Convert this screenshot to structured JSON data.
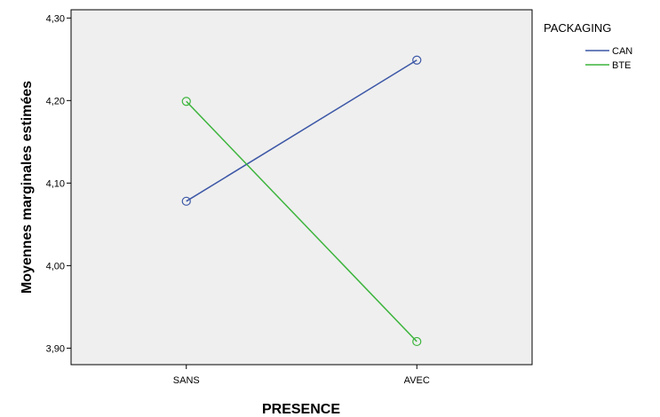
{
  "chart_data": {
    "type": "line",
    "categories": [
      "SANS",
      "AVEC"
    ],
    "series": [
      {
        "name": "CAN",
        "values": [
          4.078,
          4.249
        ],
        "color": "#3c57a6"
      },
      {
        "name": "BTE",
        "values": [
          4.199,
          3.908
        ],
        "color": "#3cb43c"
      }
    ],
    "xlabel": "PRESENCE",
    "ylabel": "Moyennes marginales estimées",
    "ylim": [
      3.88,
      4.31
    ],
    "yticks": [
      3.9,
      4.0,
      4.1,
      4.2,
      4.3
    ],
    "ytick_labels": [
      "3,90",
      "4,00",
      "4,10",
      "4,20",
      "4,30"
    ],
    "legend": {
      "title": "PACKAGING",
      "position": "right"
    },
    "plot_background": "#efefef",
    "grid": false,
    "markers": "open-circle"
  }
}
